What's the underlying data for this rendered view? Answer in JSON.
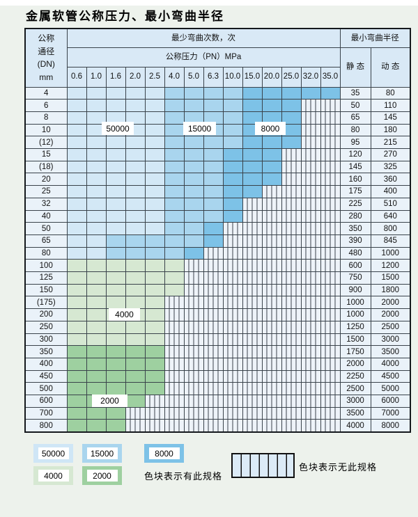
{
  "title": "金属软管公称压力、最小弯曲半径",
  "table": {
    "header": {
      "dn_lines": [
        "公称",
        "通径",
        "(DN)",
        "mm"
      ],
      "bend_cycles": "最少弯曲次数，次",
      "pressure": "公称压力（PN）MPa",
      "pressures": [
        "0.6",
        "1.0",
        "1.6",
        "2.0",
        "2.5",
        "4.0",
        "5.0",
        "6.3",
        "10.0",
        "15.0",
        "20.0",
        "25.0",
        "32.0",
        "35.0"
      ],
      "radius": "最小弯曲半径",
      "static_label": "静 态",
      "dynamic_label": "动 态"
    },
    "cell_code_legend": {
      "L": "50000 cycles zone",
      "M": "15000 cycles zone",
      "D": "8000 cycles zone",
      "A": "4000 cycles zone",
      "B": "2000 cycles zone",
      "S": "no specification (striped)"
    },
    "rows": [
      {
        "dn": "4",
        "cells": "LLLLLMMMMDDDDD",
        "static": "35",
        "dynamic": "80"
      },
      {
        "dn": "6",
        "cells": "LLLLLMMMMDDDSS",
        "static": "50",
        "dynamic": "110"
      },
      {
        "dn": "8",
        "cells": "LLLLLMMMMDDDSS",
        "static": "65",
        "dynamic": "145"
      },
      {
        "dn": "10",
        "cells": "LLLLLMMMMDDDSS",
        "static": "80",
        "dynamic": "180"
      },
      {
        "dn": "(12)",
        "cells": "LLLLLMMMMDDDSS",
        "static": "95",
        "dynamic": "215"
      },
      {
        "dn": "15",
        "cells": "LLLLLMMMDDDSSS",
        "static": "120",
        "dynamic": "270"
      },
      {
        "dn": "(18)",
        "cells": "LLLLLMMMDDDSSS",
        "static": "145",
        "dynamic": "325"
      },
      {
        "dn": "20",
        "cells": "LLLLLMMMDDDSSS",
        "static": "160",
        "dynamic": "360"
      },
      {
        "dn": "25",
        "cells": "LLLLLMMMDDSSSS",
        "static": "175",
        "dynamic": "400"
      },
      {
        "dn": "32",
        "cells": "LLLLLMMMDSSSSS",
        "static": "225",
        "dynamic": "510"
      },
      {
        "dn": "40",
        "cells": "LLLLLMMMDSSSSS",
        "static": "280",
        "dynamic": "640"
      },
      {
        "dn": "50",
        "cells": "LLLLLMMDSSSSSS",
        "static": "350",
        "dynamic": "800"
      },
      {
        "dn": "65",
        "cells": "LLMMMMMDSSSSSS",
        "static": "390",
        "dynamic": "845"
      },
      {
        "dn": "80",
        "cells": "LLMMMMDSSSSSSS",
        "static": "480",
        "dynamic": "1000"
      },
      {
        "dn": "100",
        "cells": "AAAAAASSSSSSSS",
        "static": "600",
        "dynamic": "1200"
      },
      {
        "dn": "125",
        "cells": "AAAAAASSSSSSSS",
        "static": "750",
        "dynamic": "1500"
      },
      {
        "dn": "150",
        "cells": "AAAAAASSSSSSSS",
        "static": "900",
        "dynamic": "1800"
      },
      {
        "dn": "(175)",
        "cells": "AAAAASSSSSSSSS",
        "static": "1000",
        "dynamic": "2000"
      },
      {
        "dn": "200",
        "cells": "AAAAASSSSSSSSS",
        "static": "1000",
        "dynamic": "2000"
      },
      {
        "dn": "250",
        "cells": "AAAAASSSSSSSSS",
        "static": "1250",
        "dynamic": "2500"
      },
      {
        "dn": "300",
        "cells": "AAAAASSSSSSSSS",
        "static": "1500",
        "dynamic": "3000"
      },
      {
        "dn": "350",
        "cells": "BBBBBSSSSSSSSS",
        "static": "1750",
        "dynamic": "3500"
      },
      {
        "dn": "400",
        "cells": "BBBBBSSSSSSSSS",
        "static": "2000",
        "dynamic": "4000"
      },
      {
        "dn": "450",
        "cells": "BBBBBSSSSSSSSS",
        "static": "2250",
        "dynamic": "4500"
      },
      {
        "dn": "500",
        "cells": "BBBBBSSSSSSSSS",
        "static": "2500",
        "dynamic": "5000"
      },
      {
        "dn": "600",
        "cells": "BBBBSSSSSSSSSS",
        "static": "3000",
        "dynamic": "6000"
      },
      {
        "dn": "700",
        "cells": "BBBSSSSSSSSSSS",
        "static": "3500",
        "dynamic": "7000"
      },
      {
        "dn": "800",
        "cells": "BBBSSSSSSSSSSS",
        "static": "4000",
        "dynamic": "8000"
      }
    ],
    "overlays": [
      {
        "id": "label-50000",
        "text": "50000",
        "row_dn": "10",
        "cols": "1.6-2.0"
      },
      {
        "id": "label-15000",
        "text": "15000",
        "row_dn": "10",
        "cols": "5.0-6.3"
      },
      {
        "id": "label-8000",
        "text": "8000",
        "row_dn": "10",
        "cols": "15.0-25.0"
      },
      {
        "id": "label-4000",
        "text": "4000",
        "row_dn": "200",
        "cols": "1.6-2.0"
      },
      {
        "id": "label-2000",
        "text": "2000",
        "row_dn": "600",
        "cols": "1.0-1.6"
      }
    ]
  },
  "legend": {
    "chips": [
      {
        "value": "50000",
        "color": "#cfe6f6"
      },
      {
        "value": "15000",
        "color": "#a9d5ee"
      },
      {
        "value": "8000",
        "color": "#7dc2e7"
      },
      {
        "value": "4000",
        "color": "#d6e8d2"
      },
      {
        "value": "2000",
        "color": "#9ed0a0"
      }
    ],
    "has_spec_text": "色块表示有此规格",
    "no_spec_text": "色块表示无此规格"
  },
  "colors": {
    "page_bg": "#edf2ec",
    "header_bg": "#d9e9f6",
    "label_col_bg": "#eaf2f9",
    "grid": "#39424a",
    "blue_50000": "#d3e8f6",
    "blue_15000": "#a9d5ee",
    "blue_8000": "#7dc2e7",
    "green_4000": "#d6e8d2",
    "green_2000": "#9ed0a0"
  }
}
